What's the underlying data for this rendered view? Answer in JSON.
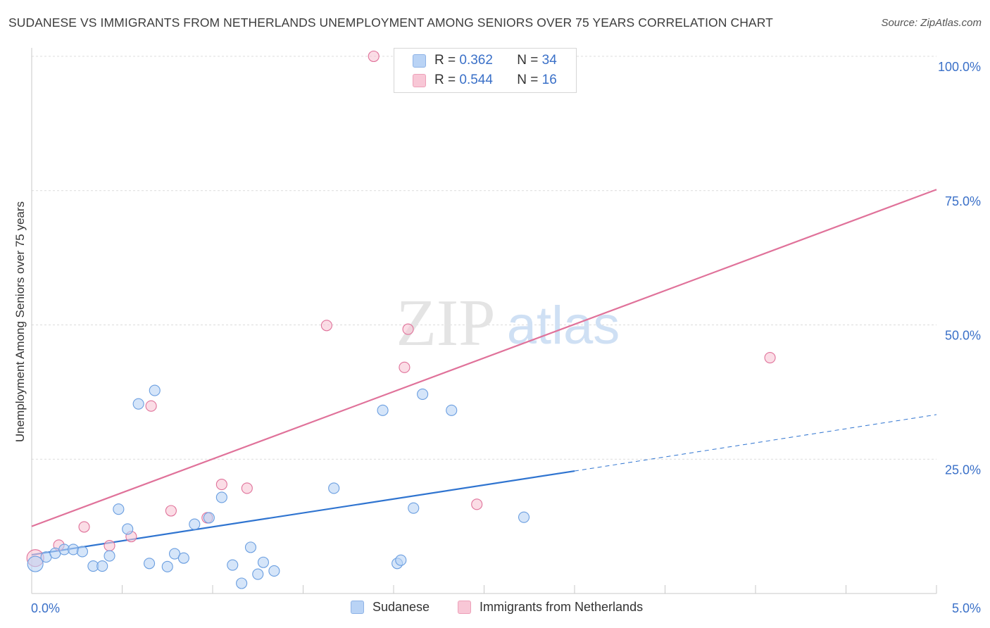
{
  "chart_data": {
    "type": "scatter",
    "title": "SUDANESE VS IMMIGRANTS FROM NETHERLANDS UNEMPLOYMENT AMONG SENIORS OVER 75 YEARS CORRELATION CHART",
    "source": "Source: ZipAtlas.com",
    "watermark": {
      "zip": "ZIP",
      "atlas": "atlas"
    },
    "xlabel": "",
    "ylabel": "Unemployment Among Seniors over 75 years",
    "xlim": [
      0,
      5.0
    ],
    "ylim": [
      0,
      100
    ],
    "x_tick_labels": [
      "0.0%",
      "5.0%"
    ],
    "y_ticks": [
      25,
      50,
      75,
      100
    ],
    "y_tick_labels": [
      "25.0%",
      "50.0%",
      "75.0%",
      "100.0%"
    ],
    "legend_stats": [
      {
        "r_label": "R =",
        "r_value": "0.362",
        "n_label": "N =",
        "n_value": "34"
      },
      {
        "r_label": "R =",
        "r_value": "0.544",
        "n_label": "N =",
        "n_value": "16"
      }
    ],
    "series": [
      {
        "name": "Sudanese",
        "color": "#6a9ee0",
        "fill": "#b9d3f5",
        "points": [
          {
            "x": 0.02,
            "y": 5.5,
            "size": 22
          },
          {
            "x": 0.08,
            "y": 6.8,
            "size": 15
          },
          {
            "x": 0.13,
            "y": 7.5,
            "size": 15
          },
          {
            "x": 0.18,
            "y": 8.2,
            "size": 15
          },
          {
            "x": 0.23,
            "y": 8.2,
            "size": 15
          },
          {
            "x": 0.28,
            "y": 7.8,
            "size": 15
          },
          {
            "x": 0.34,
            "y": 5.1,
            "size": 15
          },
          {
            "x": 0.39,
            "y": 5.1,
            "size": 15
          },
          {
            "x": 0.43,
            "y": 7.0,
            "size": 15
          },
          {
            "x": 0.48,
            "y": 15.7,
            "size": 15
          },
          {
            "x": 0.53,
            "y": 12.0,
            "size": 15
          },
          {
            "x": 0.59,
            "y": 35.3,
            "size": 15
          },
          {
            "x": 0.65,
            "y": 5.6,
            "size": 15
          },
          {
            "x": 0.68,
            "y": 37.8,
            "size": 15
          },
          {
            "x": 0.75,
            "y": 5.0,
            "size": 15
          },
          {
            "x": 0.79,
            "y": 7.4,
            "size": 15
          },
          {
            "x": 0.84,
            "y": 6.6,
            "size": 15
          },
          {
            "x": 0.9,
            "y": 12.9,
            "size": 15
          },
          {
            "x": 0.98,
            "y": 14.1,
            "size": 15
          },
          {
            "x": 1.05,
            "y": 17.9,
            "size": 15
          },
          {
            "x": 1.11,
            "y": 5.3,
            "size": 15
          },
          {
            "x": 1.16,
            "y": 1.9,
            "size": 15
          },
          {
            "x": 1.21,
            "y": 8.6,
            "size": 15
          },
          {
            "x": 1.25,
            "y": 3.6,
            "size": 15
          },
          {
            "x": 1.28,
            "y": 5.8,
            "size": 15
          },
          {
            "x": 1.34,
            "y": 4.2,
            "size": 15
          },
          {
            "x": 1.67,
            "y": 19.6,
            "size": 15
          },
          {
            "x": 1.94,
            "y": 34.1,
            "size": 15
          },
          {
            "x": 2.02,
            "y": 5.6,
            "size": 15
          },
          {
            "x": 2.04,
            "y": 6.2,
            "size": 15
          },
          {
            "x": 2.11,
            "y": 15.9,
            "size": 15
          },
          {
            "x": 2.16,
            "y": 37.1,
            "size": 15
          },
          {
            "x": 2.32,
            "y": 34.1,
            "size": 15
          },
          {
            "x": 2.72,
            "y": 14.2,
            "size": 15
          }
        ],
        "trend": {
          "x0": 0.0,
          "y0": 7.2,
          "x1": 3.0,
          "y1": 22.8,
          "dash_to_x": 5.0,
          "dash_to_y": 33.3
        }
      },
      {
        "name": "Immigrants from Netherlands",
        "color": "#e0729a",
        "fill": "#f8c7d6",
        "points": [
          {
            "x": 0.02,
            "y": 6.6,
            "size": 24
          },
          {
            "x": 0.15,
            "y": 9.0,
            "size": 15
          },
          {
            "x": 0.29,
            "y": 12.4,
            "size": 15
          },
          {
            "x": 0.43,
            "y": 8.9,
            "size": 15
          },
          {
            "x": 0.55,
            "y": 10.6,
            "size": 15
          },
          {
            "x": 0.66,
            "y": 34.9,
            "size": 15
          },
          {
            "x": 0.77,
            "y": 15.4,
            "size": 15
          },
          {
            "x": 0.97,
            "y": 14.1,
            "size": 15
          },
          {
            "x": 1.05,
            "y": 20.3,
            "size": 15
          },
          {
            "x": 1.19,
            "y": 19.6,
            "size": 15
          },
          {
            "x": 1.63,
            "y": 49.9,
            "size": 15
          },
          {
            "x": 1.89,
            "y": 100.0,
            "size": 15
          },
          {
            "x": 2.06,
            "y": 42.1,
            "size": 15
          },
          {
            "x": 2.08,
            "y": 49.2,
            "size": 15
          },
          {
            "x": 2.46,
            "y": 16.6,
            "size": 15
          },
          {
            "x": 4.08,
            "y": 43.9,
            "size": 15
          }
        ],
        "trend": {
          "x0": 0.0,
          "y0": 12.5,
          "x1": 5.0,
          "y1": 75.2
        }
      }
    ]
  }
}
